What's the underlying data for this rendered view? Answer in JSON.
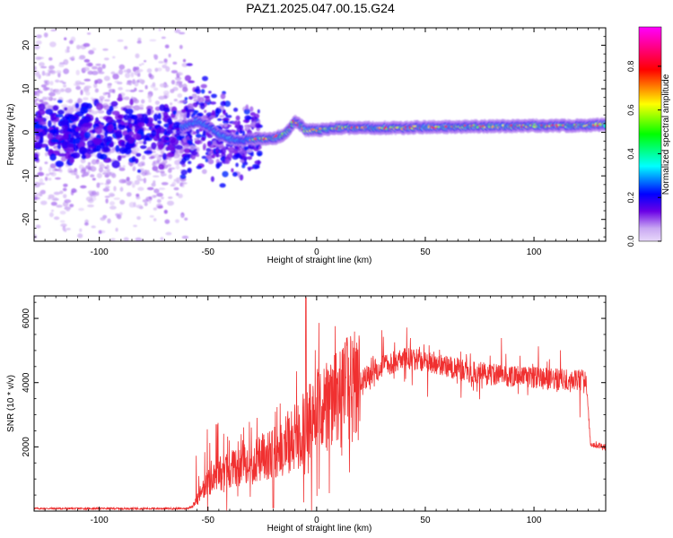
{
  "figure": {
    "title": "PAZ1.2025.047.00.15.G24"
  },
  "chart_data": [
    {
      "type": "heatmap",
      "title": "PAZ1.2025.047.00.15.G24",
      "xlabel": "Height of straight line (km)",
      "ylabel": "Frequency (Hz)",
      "xlim": [
        -130,
        133
      ],
      "ylim": [
        -25,
        24
      ],
      "x_ticks": [
        -100,
        -50,
        0,
        50,
        100
      ],
      "y_ticks": [
        20,
        10,
        0,
        -10,
        -20
      ],
      "colorbar": {
        "label": "Normalized spectral amplitude",
        "range": [
          0.0,
          0.98
        ],
        "ticks": [
          0.0,
          0.2,
          0.4,
          0.6,
          0.8
        ],
        "tick_labels": [
          "0.0",
          "0.2",
          "0.4",
          "0.6",
          "0.8"
        ],
        "colormap": [
          "#ff00ff",
          "#ff0000",
          "#ffff00",
          "#00ff00",
          "#00ffff",
          "#0000ff",
          "#e8d8fa"
        ]
      },
      "frequency_trace": {
        "height_km": [
          -130,
          -110,
          -90,
          -70,
          -60,
          -55,
          -50,
          -45,
          -40,
          -35,
          -30,
          -25,
          -20,
          -15,
          -12,
          -10,
          -8,
          -5,
          0,
          10,
          20,
          30,
          40,
          50,
          60,
          70,
          80,
          90,
          100,
          110,
          120,
          133
        ],
        "frequency_hz": [
          0,
          0,
          0,
          0,
          1.5,
          2.5,
          1.5,
          -0.5,
          -1.5,
          -2,
          -1.5,
          -1.5,
          -1.5,
          -0.5,
          1,
          2.5,
          2,
          0.5,
          0.5,
          1,
          1,
          1,
          1,
          1.2,
          1.2,
          1.3,
          1.4,
          1.4,
          1.5,
          1.5,
          1.5,
          1.8
        ]
      },
      "grid": false
    },
    {
      "type": "line",
      "xlabel": "Height of straight line (km)",
      "ylabel": "SNR (10 * v/v)",
      "xlim": [
        -130,
        133
      ],
      "ylim": [
        0,
        6700
      ],
      "x_ticks": [
        -100,
        -50,
        0,
        50,
        100
      ],
      "y_ticks": [
        2000,
        4000,
        6000
      ],
      "series": [
        {
          "color": "#f03030",
          "x": [
            -130,
            -100,
            -80,
            -60,
            -57,
            -54,
            -50,
            -45,
            -40,
            -35,
            -30,
            -25,
            -20,
            -15,
            -10,
            -5,
            0,
            5,
            10,
            15,
            20,
            25,
            30,
            40,
            50,
            60,
            70,
            80,
            90,
            100,
            110,
            120,
            124,
            126,
            133
          ],
          "y": [
            80,
            80,
            80,
            80,
            150,
            500,
            900,
            1100,
            1300,
            1400,
            1500,
            1700,
            1800,
            2000,
            2300,
            2700,
            3000,
            3200,
            3500,
            3800,
            4000,
            4300,
            4500,
            4750,
            4700,
            4500,
            4350,
            4250,
            4200,
            4150,
            4100,
            4100,
            4100,
            2100,
            2000
          ]
        }
      ],
      "grid": false
    }
  ]
}
